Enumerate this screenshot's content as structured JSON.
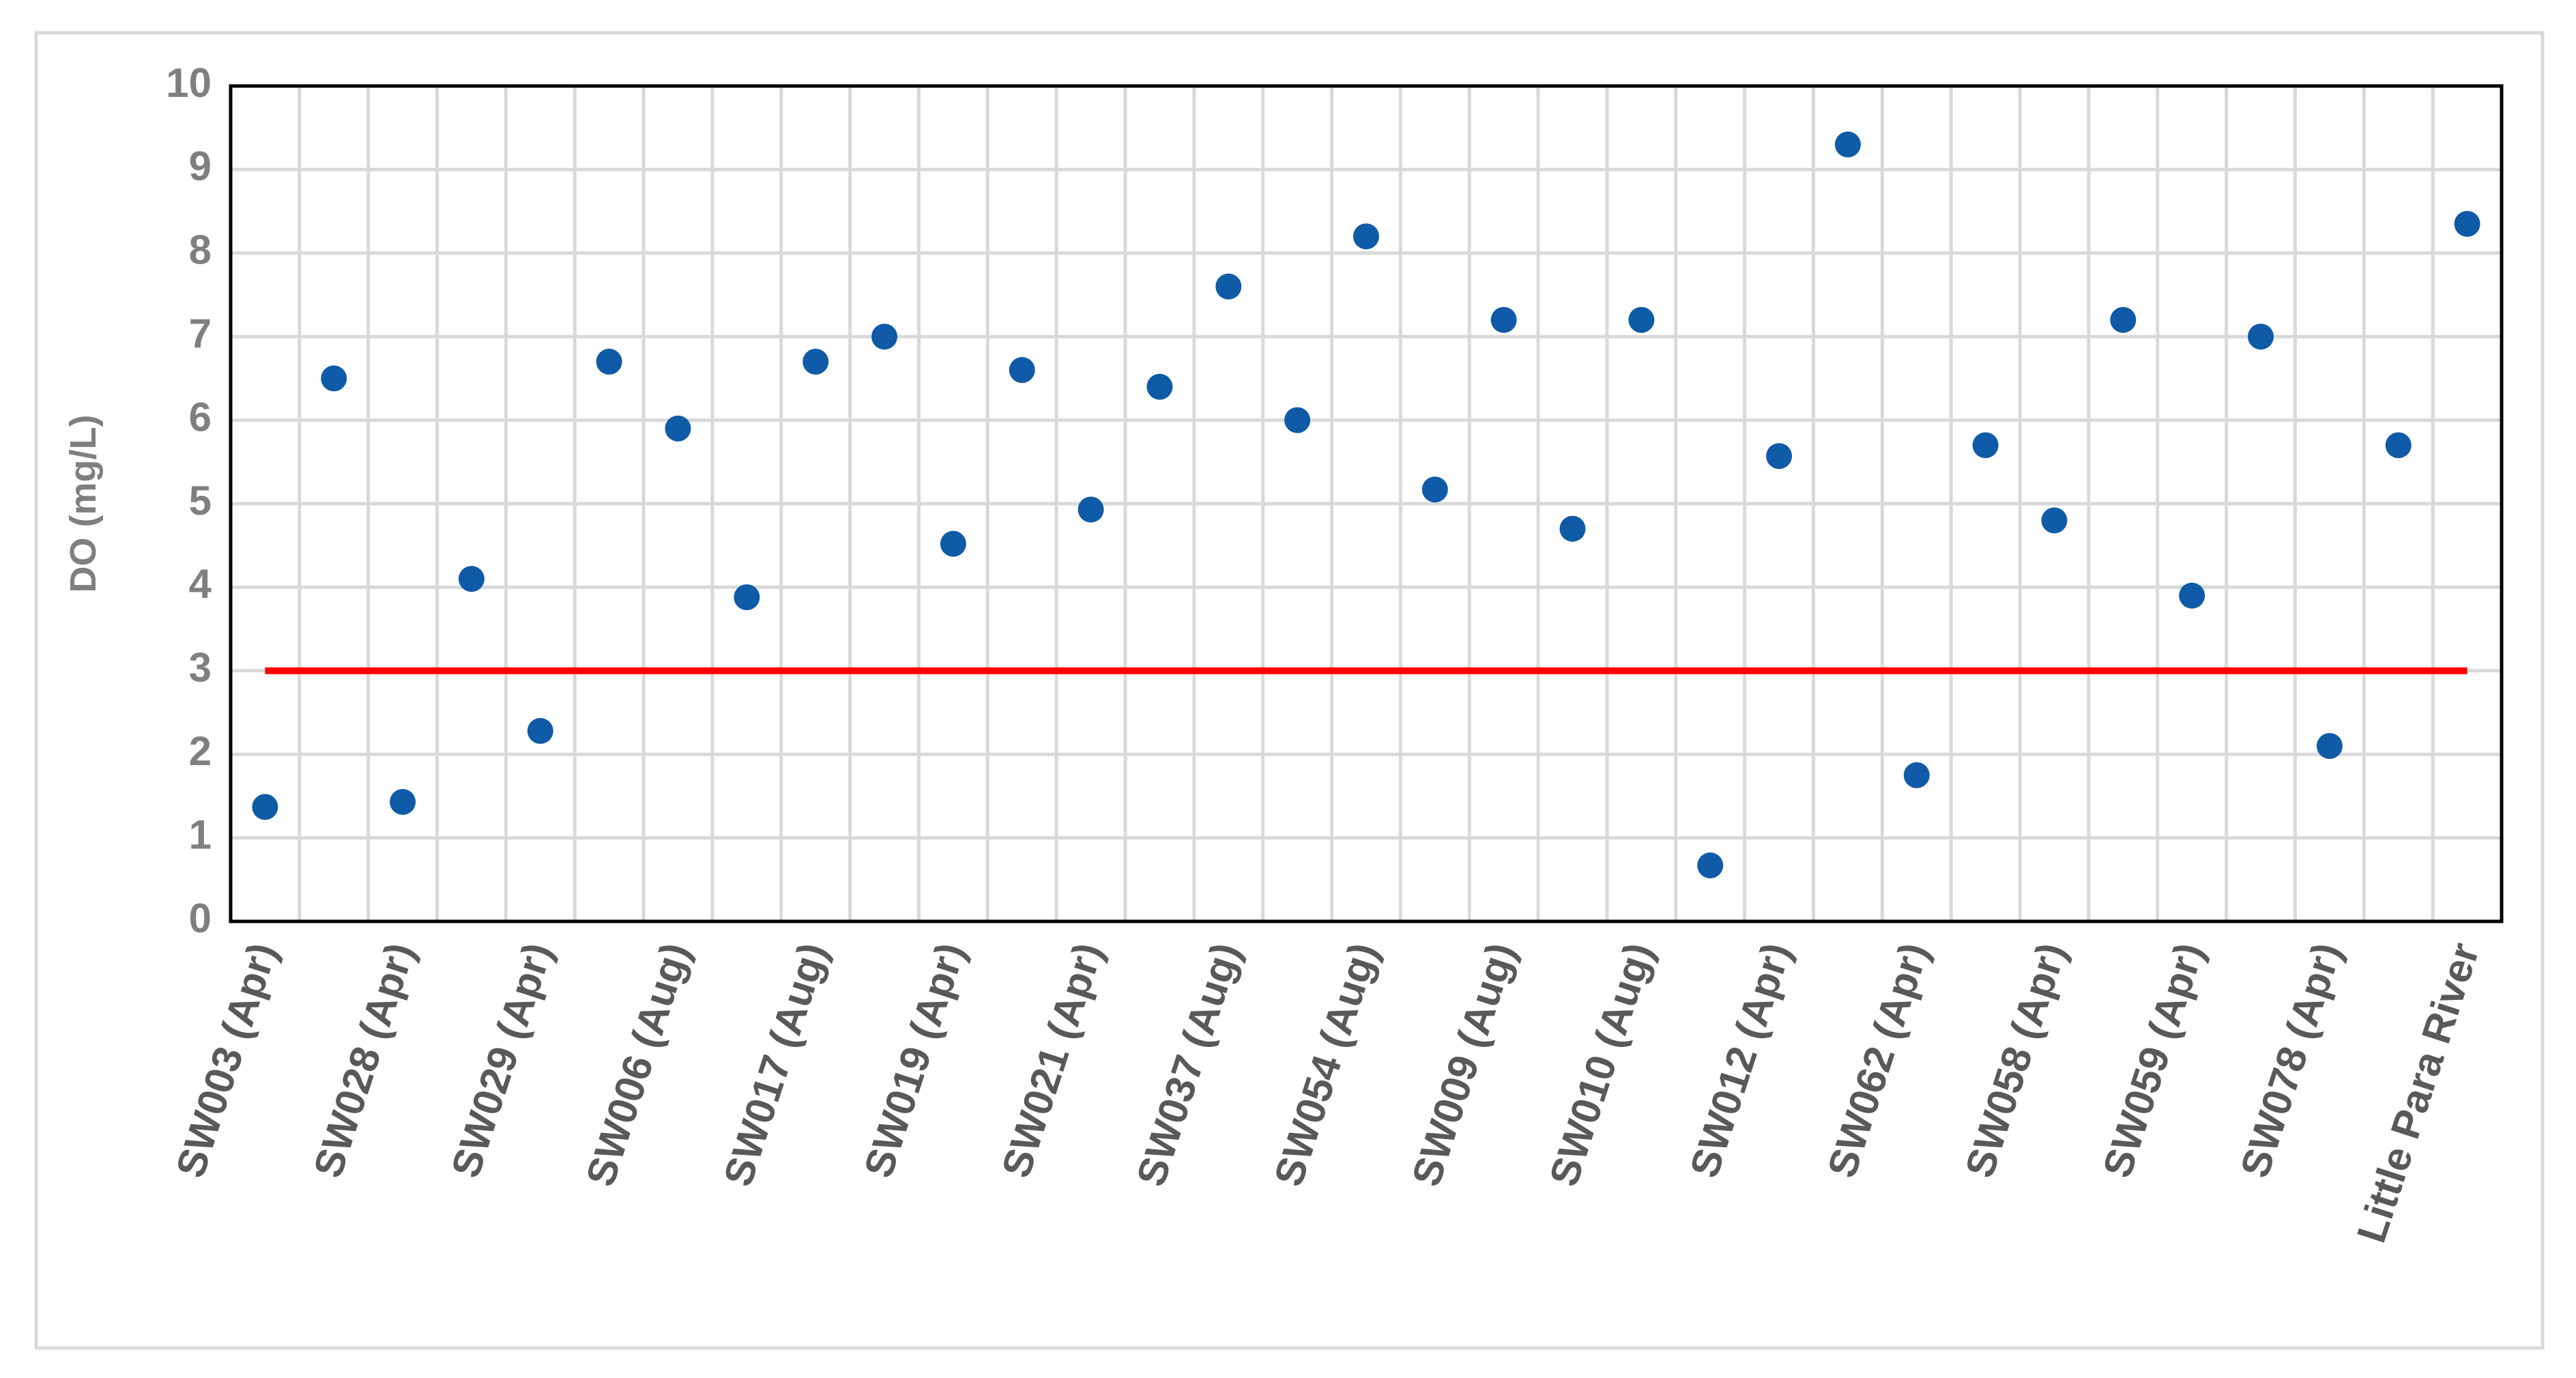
{
  "chart_data": {
    "type": "scatter",
    "y_label": "DO (mg/L)",
    "categories": [
      "SW003 (Apr)",
      null,
      "SW028 (Apr)",
      null,
      "SW029 (Apr)",
      null,
      "SW006 (Aug)",
      null,
      "SW017 (Aug)",
      null,
      "SW019 (Apr)",
      null,
      "SW021 (Apr)",
      null,
      "SW037 (Aug)",
      null,
      "SW054 (Aug)",
      null,
      "SW009 (Aug)",
      null,
      "SW010 (Aug)",
      null,
      "SW012 (Apr)",
      null,
      "SW062 (Apr)",
      null,
      "SW058 (Apr)",
      null,
      "SW059 (Apr)",
      null,
      "SW078 (Apr)",
      null,
      "Little Para River"
    ],
    "values": [
      1.37,
      6.5,
      1.43,
      4.1,
      2.28,
      6.7,
      5.9,
      3.88,
      6.7,
      7.0,
      4.52,
      6.6,
      4.93,
      6.4,
      7.6,
      6.0,
      8.2,
      5.17,
      7.2,
      4.7,
      7.2,
      0.67,
      5.57,
      9.3,
      1.75,
      5.7,
      4.8,
      7.2,
      3.9,
      7.0,
      2.1,
      5.7,
      8.35
    ],
    "color": "#0f5ba7",
    "reference_line": {
      "value": 3,
      "color": "#ff0000"
    },
    "ylim": [
      0,
      10
    ],
    "yticks": [
      0,
      1,
      2,
      3,
      4,
      5,
      6,
      7,
      8,
      9,
      10
    ],
    "grid": true
  }
}
